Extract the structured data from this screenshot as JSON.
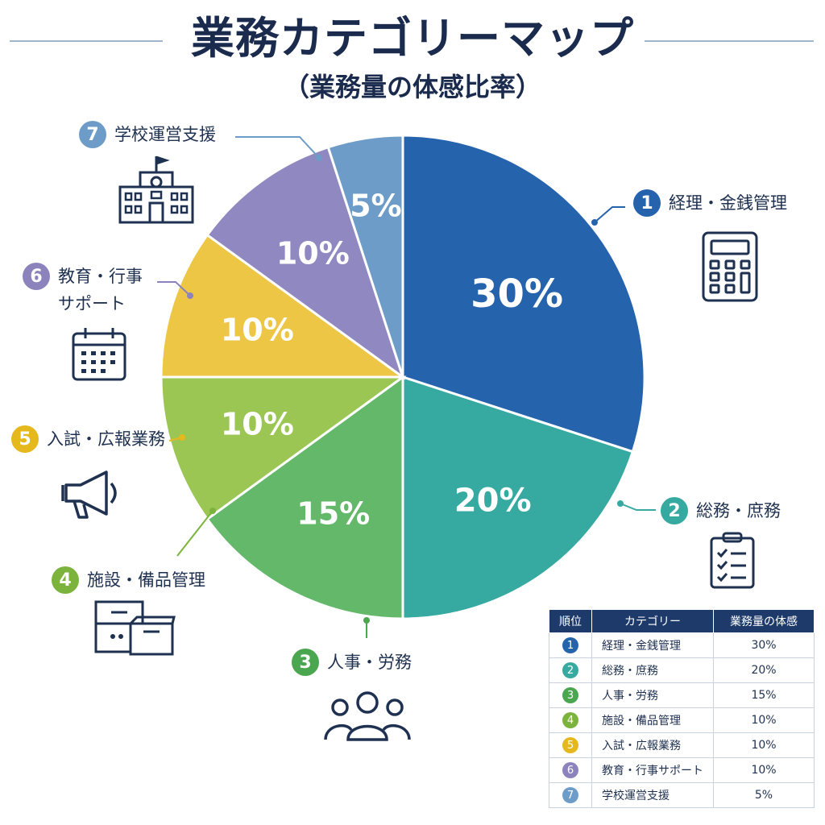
{
  "title": "業務カテゴリーマップ",
  "subtitle": "（業務量の体感比率）",
  "table": {
    "headers": [
      "順位",
      "カテゴリー",
      "業務量の体感"
    ]
  },
  "chart_data": {
    "type": "pie",
    "title": "業務カテゴリーマップ",
    "subtitle": "（業務量の体感比率）",
    "unit": "%",
    "slices": [
      {
        "rank": "1",
        "name": "経理・金銭管理",
        "value": 30,
        "label": "30%",
        "color": "#2563ad",
        "icon": "calculator-icon"
      },
      {
        "rank": "2",
        "name": "総務・庶務",
        "value": 20,
        "label": "20%",
        "color": "#36a9a1",
        "icon": "clipboard-checklist-icon"
      },
      {
        "rank": "3",
        "name": "人事・労務",
        "value": 15,
        "label": "15%",
        "color": "#63b86a",
        "icon": "people-group-icon"
      },
      {
        "rank": "4",
        "name": "施設・備品管理",
        "value": 10,
        "label": "10%",
        "color": "#9cc653",
        "icon": "cabinet-box-icon"
      },
      {
        "rank": "5",
        "name": "入試・広報業務",
        "value": 10,
        "label": "10%",
        "color": "#edc646",
        "icon": "megaphone-icon"
      },
      {
        "rank": "6",
        "name": "教育・行事サポート",
        "value": 10,
        "label": "10%",
        "color": "#9088c0",
        "icon": "calendar-icon"
      },
      {
        "rank": "7",
        "name": "学校運営支援",
        "value": 5,
        "label": "5%",
        "color": "#6c9cc7",
        "icon": "school-building-icon"
      }
    ],
    "callout_labels": {
      "6": "教育・行事\nサポート"
    }
  }
}
